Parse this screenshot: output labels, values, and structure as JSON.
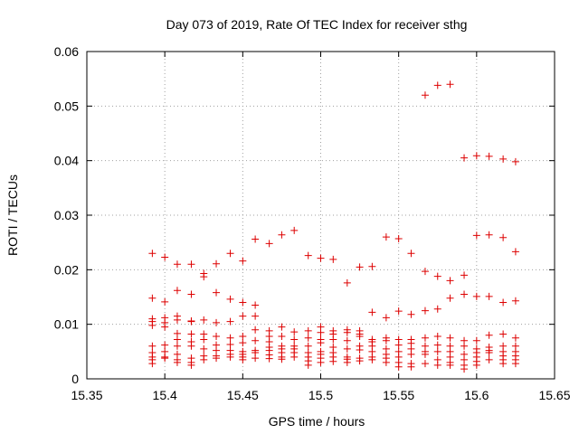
{
  "chart_data": {
    "type": "scatter",
    "title": "Day 073 of 2019, Rate Of TEC Index for receiver sthg",
    "xlabel": "GPS time / hours",
    "ylabel": "ROTI / TECUs",
    "xlim": [
      15.35,
      15.65
    ],
    "ylim": [
      0,
      0.06
    ],
    "x_ticks": [
      15.35,
      15.4,
      15.45,
      15.5,
      15.55,
      15.6,
      15.65
    ],
    "x_tick_labels": [
      "15.35",
      "15.4",
      "15.45",
      "15.5",
      "15.55",
      "15.6",
      "15.65"
    ],
    "y_ticks": [
      0,
      0.01,
      0.02,
      0.03,
      0.04,
      0.05,
      0.06
    ],
    "y_tick_labels": [
      "0",
      "0.01",
      "0.02",
      "0.03",
      "0.04",
      "0.05",
      "0.06"
    ],
    "grid": true,
    "marker": "+",
    "marker_color": "#dd0000",
    "series": [
      {
        "name": "ROTI",
        "points": [
          [
            15.392,
            0.023
          ],
          [
            15.392,
            0.0148
          ],
          [
            15.392,
            0.011
          ],
          [
            15.392,
            0.0105
          ],
          [
            15.392,
            0.0098
          ],
          [
            15.392,
            0.006
          ],
          [
            15.392,
            0.0048
          ],
          [
            15.392,
            0.004
          ],
          [
            15.392,
            0.0035
          ],
          [
            15.392,
            0.0028
          ],
          [
            15.4,
            0.0223
          ],
          [
            15.4,
            0.0141
          ],
          [
            15.4,
            0.0112
          ],
          [
            15.4,
            0.0103
          ],
          [
            15.4,
            0.0095
          ],
          [
            15.4,
            0.0062
          ],
          [
            15.4,
            0.005
          ],
          [
            15.4,
            0.004
          ],
          [
            15.4,
            0.0038
          ],
          [
            15.408,
            0.021
          ],
          [
            15.408,
            0.0162
          ],
          [
            15.408,
            0.0115
          ],
          [
            15.408,
            0.0108
          ],
          [
            15.408,
            0.0083
          ],
          [
            15.408,
            0.0072
          ],
          [
            15.408,
            0.006
          ],
          [
            15.408,
            0.0045
          ],
          [
            15.408,
            0.0035
          ],
          [
            15.408,
            0.003
          ],
          [
            15.417,
            0.021
          ],
          [
            15.417,
            0.0155
          ],
          [
            15.417,
            0.0106
          ],
          [
            15.417,
            0.0105
          ],
          [
            15.417,
            0.0082
          ],
          [
            15.417,
            0.0068
          ],
          [
            15.417,
            0.006
          ],
          [
            15.417,
            0.0038
          ],
          [
            15.417,
            0.003
          ],
          [
            15.417,
            0.0025
          ],
          [
            15.425,
            0.0193
          ],
          [
            15.425,
            0.0187
          ],
          [
            15.425,
            0.0108
          ],
          [
            15.425,
            0.0082
          ],
          [
            15.425,
            0.0072
          ],
          [
            15.425,
            0.0055
          ],
          [
            15.425,
            0.0042
          ],
          [
            15.425,
            0.0035
          ],
          [
            15.433,
            0.0211
          ],
          [
            15.433,
            0.0158
          ],
          [
            15.433,
            0.0103
          ],
          [
            15.433,
            0.0078
          ],
          [
            15.433,
            0.0062
          ],
          [
            15.433,
            0.0052
          ],
          [
            15.433,
            0.0042
          ],
          [
            15.433,
            0.0038
          ],
          [
            15.442,
            0.023
          ],
          [
            15.442,
            0.0146
          ],
          [
            15.442,
            0.0105
          ],
          [
            15.442,
            0.0075
          ],
          [
            15.442,
            0.0063
          ],
          [
            15.442,
            0.0052
          ],
          [
            15.442,
            0.0045
          ],
          [
            15.442,
            0.004
          ],
          [
            15.45,
            0.0216
          ],
          [
            15.45,
            0.014
          ],
          [
            15.45,
            0.0115
          ],
          [
            15.45,
            0.0078
          ],
          [
            15.45,
            0.0066
          ],
          [
            15.45,
            0.005
          ],
          [
            15.45,
            0.0045
          ],
          [
            15.45,
            0.004
          ],
          [
            15.45,
            0.0035
          ],
          [
            15.458,
            0.0256
          ],
          [
            15.458,
            0.0135
          ],
          [
            15.458,
            0.0115
          ],
          [
            15.458,
            0.009
          ],
          [
            15.458,
            0.007
          ],
          [
            15.458,
            0.0052
          ],
          [
            15.458,
            0.0048
          ],
          [
            15.458,
            0.0038
          ],
          [
            15.467,
            0.0248
          ],
          [
            15.467,
            0.0088
          ],
          [
            15.467,
            0.0078
          ],
          [
            15.467,
            0.0068
          ],
          [
            15.467,
            0.0058
          ],
          [
            15.467,
            0.0052
          ],
          [
            15.467,
            0.0044
          ],
          [
            15.467,
            0.0037
          ],
          [
            15.475,
            0.0264
          ],
          [
            15.475,
            0.0095
          ],
          [
            15.475,
            0.0078
          ],
          [
            15.475,
            0.006
          ],
          [
            15.475,
            0.0055
          ],
          [
            15.475,
            0.0048
          ],
          [
            15.475,
            0.004
          ],
          [
            15.475,
            0.0036
          ],
          [
            15.483,
            0.0272
          ],
          [
            15.483,
            0.0086
          ],
          [
            15.483,
            0.0072
          ],
          [
            15.483,
            0.006
          ],
          [
            15.483,
            0.0055
          ],
          [
            15.483,
            0.0048
          ],
          [
            15.483,
            0.004
          ],
          [
            15.492,
            0.0226
          ],
          [
            15.492,
            0.0088
          ],
          [
            15.492,
            0.0075
          ],
          [
            15.492,
            0.006
          ],
          [
            15.492,
            0.0048
          ],
          [
            15.492,
            0.004
          ],
          [
            15.492,
            0.0033
          ],
          [
            15.492,
            0.0025
          ],
          [
            15.5,
            0.0221
          ],
          [
            15.5,
            0.0095
          ],
          [
            15.5,
            0.0085
          ],
          [
            15.5,
            0.0072
          ],
          [
            15.5,
            0.0066
          ],
          [
            15.5,
            0.005
          ],
          [
            15.5,
            0.0045
          ],
          [
            15.5,
            0.0038
          ],
          [
            15.5,
            0.003
          ],
          [
            15.508,
            0.0219
          ],
          [
            15.508,
            0.0088
          ],
          [
            15.508,
            0.0082
          ],
          [
            15.508,
            0.0072
          ],
          [
            15.508,
            0.0058
          ],
          [
            15.508,
            0.0048
          ],
          [
            15.508,
            0.004
          ],
          [
            15.508,
            0.0032
          ],
          [
            15.517,
            0.0176
          ],
          [
            15.517,
            0.009
          ],
          [
            15.517,
            0.0085
          ],
          [
            15.517,
            0.007
          ],
          [
            15.517,
            0.0055
          ],
          [
            15.517,
            0.004
          ],
          [
            15.517,
            0.0036
          ],
          [
            15.517,
            0.003
          ],
          [
            15.525,
            0.0205
          ],
          [
            15.525,
            0.0088
          ],
          [
            15.525,
            0.0082
          ],
          [
            15.525,
            0.0078
          ],
          [
            15.525,
            0.006
          ],
          [
            15.525,
            0.0053
          ],
          [
            15.525,
            0.0038
          ],
          [
            15.525,
            0.0033
          ],
          [
            15.533,
            0.0206
          ],
          [
            15.533,
            0.0122
          ],
          [
            15.533,
            0.0072
          ],
          [
            15.533,
            0.0068
          ],
          [
            15.533,
            0.006
          ],
          [
            15.533,
            0.005
          ],
          [
            15.533,
            0.004
          ],
          [
            15.533,
            0.0035
          ],
          [
            15.542,
            0.026
          ],
          [
            15.542,
            0.0112
          ],
          [
            15.542,
            0.0075
          ],
          [
            15.542,
            0.007
          ],
          [
            15.542,
            0.0055
          ],
          [
            15.542,
            0.0045
          ],
          [
            15.542,
            0.0038
          ],
          [
            15.542,
            0.003
          ],
          [
            15.55,
            0.0257
          ],
          [
            15.55,
            0.0124
          ],
          [
            15.55,
            0.0072
          ],
          [
            15.55,
            0.0062
          ],
          [
            15.55,
            0.005
          ],
          [
            15.55,
            0.004
          ],
          [
            15.55,
            0.003
          ],
          [
            15.55,
            0.0022
          ],
          [
            15.558,
            0.023
          ],
          [
            15.558,
            0.0118
          ],
          [
            15.558,
            0.0072
          ],
          [
            15.558,
            0.0065
          ],
          [
            15.558,
            0.0055
          ],
          [
            15.558,
            0.0045
          ],
          [
            15.558,
            0.0028
          ],
          [
            15.558,
            0.0022
          ],
          [
            15.567,
            0.052
          ],
          [
            15.567,
            0.0197
          ],
          [
            15.567,
            0.0125
          ],
          [
            15.567,
            0.0075
          ],
          [
            15.567,
            0.006
          ],
          [
            15.567,
            0.005
          ],
          [
            15.567,
            0.0045
          ],
          [
            15.567,
            0.0028
          ],
          [
            15.575,
            0.0538
          ],
          [
            15.575,
            0.0188
          ],
          [
            15.575,
            0.0128
          ],
          [
            15.575,
            0.0078
          ],
          [
            15.575,
            0.0062
          ],
          [
            15.575,
            0.005
          ],
          [
            15.575,
            0.0035
          ],
          [
            15.575,
            0.0025
          ],
          [
            15.583,
            0.054
          ],
          [
            15.583,
            0.018
          ],
          [
            15.583,
            0.0148
          ],
          [
            15.583,
            0.0075
          ],
          [
            15.583,
            0.006
          ],
          [
            15.583,
            0.005
          ],
          [
            15.583,
            0.004
          ],
          [
            15.583,
            0.003
          ],
          [
            15.583,
            0.0025
          ],
          [
            15.592,
            0.0405
          ],
          [
            15.592,
            0.019
          ],
          [
            15.592,
            0.0155
          ],
          [
            15.592,
            0.007
          ],
          [
            15.592,
            0.006
          ],
          [
            15.592,
            0.0045
          ],
          [
            15.592,
            0.0035
          ],
          [
            15.592,
            0.0025
          ],
          [
            15.592,
            0.0018
          ],
          [
            15.6,
            0.0409
          ],
          [
            15.6,
            0.0263
          ],
          [
            15.6,
            0.0151
          ],
          [
            15.6,
            0.007
          ],
          [
            15.6,
            0.0055
          ],
          [
            15.6,
            0.0048
          ],
          [
            15.6,
            0.004
          ],
          [
            15.6,
            0.0032
          ],
          [
            15.6,
            0.0025
          ],
          [
            15.608,
            0.0408
          ],
          [
            15.608,
            0.0264
          ],
          [
            15.608,
            0.0151
          ],
          [
            15.608,
            0.008
          ],
          [
            15.608,
            0.0058
          ],
          [
            15.608,
            0.0052
          ],
          [
            15.608,
            0.0048
          ],
          [
            15.608,
            0.0035
          ],
          [
            15.617,
            0.0403
          ],
          [
            15.617,
            0.0259
          ],
          [
            15.617,
            0.014
          ],
          [
            15.617,
            0.0082
          ],
          [
            15.617,
            0.006
          ],
          [
            15.617,
            0.005
          ],
          [
            15.617,
            0.0042
          ],
          [
            15.617,
            0.0035
          ],
          [
            15.617,
            0.0028
          ],
          [
            15.625,
            0.0398
          ],
          [
            15.625,
            0.0233
          ],
          [
            15.625,
            0.0143
          ],
          [
            15.625,
            0.0075
          ],
          [
            15.625,
            0.006
          ],
          [
            15.625,
            0.005
          ],
          [
            15.625,
            0.0042
          ],
          [
            15.625,
            0.0035
          ],
          [
            15.625,
            0.0028
          ]
        ]
      }
    ]
  }
}
